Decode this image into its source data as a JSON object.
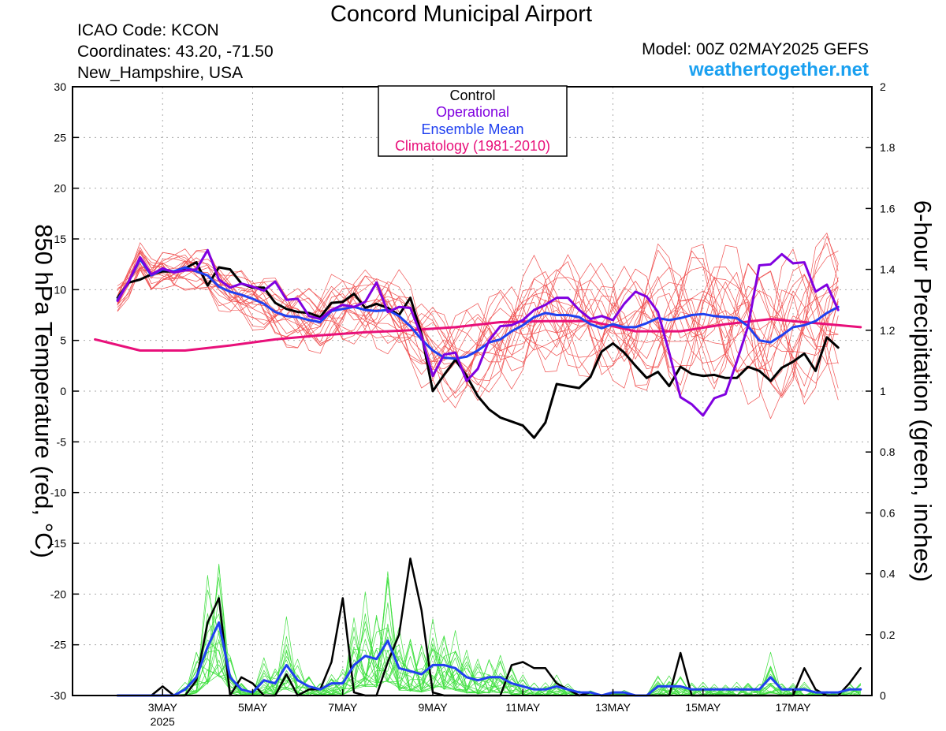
{
  "header": {
    "title": "Concord Municipal Airport",
    "icao": "ICAO Code: KCON",
    "coords": "Coordinates: 43.20, -71.50",
    "location": "New_Hampshire, USA",
    "model": "Model: 00Z 02MAY2025 GEFS",
    "site": "weathertogether.net"
  },
  "colors": {
    "control": "#000000",
    "operational": "#8000e0",
    "ensemble_mean": "#2040f0",
    "climatology": "#e8107a",
    "members_temp": "#f05050",
    "members_precip": "#40e040",
    "site": "#1aa0f0"
  },
  "chart_data": {
    "type": "line",
    "title": "Concord Municipal Airport",
    "ylabel": "850 hPa Temperature (red, °C)",
    "y2label": "6-hour Precipitation (green, inches)",
    "xlim": [
      1.0,
      18.75
    ],
    "ylim": [
      -30,
      30
    ],
    "y2lim": [
      0,
      2
    ],
    "yticks": [
      30,
      25,
      20,
      15,
      10,
      5,
      0,
      -5,
      -10,
      -15,
      -20,
      -25,
      -30
    ],
    "y2ticks": [
      2,
      1.8,
      1.6,
      1.4,
      1.2,
      1,
      0.8,
      0.6,
      0.4,
      0.2,
      0
    ],
    "xticks": [
      {
        "x": 3,
        "label": "3MAY",
        "sub": "2025"
      },
      {
        "x": 5,
        "label": "5MAY",
        "sub": ""
      },
      {
        "x": 7,
        "label": "7MAY",
        "sub": ""
      },
      {
        "x": 9,
        "label": "9MAY",
        "sub": ""
      },
      {
        "x": 11,
        "label": "11MAY",
        "sub": ""
      },
      {
        "x": 13,
        "label": "13MAY",
        "sub": ""
      },
      {
        "x": 15,
        "label": "15MAY",
        "sub": ""
      },
      {
        "x": 17,
        "label": "17MAY",
        "sub": ""
      }
    ],
    "legend": [
      "Control",
      "Operational",
      "Ensemble Mean",
      "Climatology (1981-2010)"
    ],
    "legend_placement": "top-center",
    "grid": true,
    "temperature": {
      "control": [
        [
          2.0,
          9.2
        ],
        [
          2.25,
          10.7
        ],
        [
          2.5,
          11.0
        ],
        [
          2.75,
          11.5
        ],
        [
          3.0,
          11.8
        ],
        [
          3.25,
          11.8
        ],
        [
          3.5,
          12.1
        ],
        [
          3.75,
          12.7
        ],
        [
          4.0,
          10.4
        ],
        [
          4.25,
          12.2
        ],
        [
          4.5,
          12.0
        ],
        [
          4.75,
          10.6
        ],
        [
          5.0,
          10.2
        ],
        [
          5.25,
          10.2
        ],
        [
          5.5,
          8.7
        ],
        [
          5.75,
          8.1
        ],
        [
          6.0,
          7.8
        ],
        [
          6.25,
          7.7
        ],
        [
          6.5,
          7.3
        ],
        [
          6.75,
          8.7
        ],
        [
          7.0,
          8.8
        ],
        [
          7.25,
          9.6
        ],
        [
          7.5,
          8.2
        ],
        [
          7.75,
          8.6
        ],
        [
          8.0,
          8.2
        ],
        [
          8.25,
          7.5
        ],
        [
          8.5,
          9.2
        ],
        [
          8.75,
          5.6
        ],
        [
          9.0,
          0.0
        ],
        [
          9.25,
          1.6
        ],
        [
          9.5,
          3.1
        ],
        [
          9.75,
          1.5
        ],
        [
          10.0,
          -0.5
        ],
        [
          10.25,
          -1.8
        ],
        [
          10.5,
          -2.6
        ],
        [
          10.75,
          -3.0
        ],
        [
          11.0,
          -3.4
        ],
        [
          11.25,
          -4.6
        ],
        [
          11.5,
          -3.1
        ],
        [
          11.75,
          0.7
        ],
        [
          12.0,
          0.5
        ],
        [
          12.25,
          0.3
        ],
        [
          12.5,
          1.4
        ],
        [
          12.75,
          3.9
        ],
        [
          13.0,
          4.7
        ],
        [
          13.25,
          3.8
        ],
        [
          13.5,
          2.5
        ],
        [
          13.75,
          1.3
        ],
        [
          14.0,
          1.9
        ],
        [
          14.25,
          0.5
        ],
        [
          14.5,
          2.4
        ],
        [
          14.75,
          1.7
        ],
        [
          15.0,
          1.5
        ],
        [
          15.25,
          1.6
        ],
        [
          15.5,
          1.3
        ],
        [
          15.75,
          1.3
        ],
        [
          16.0,
          2.4
        ],
        [
          16.25,
          2.0
        ],
        [
          16.5,
          1.0
        ],
        [
          16.75,
          2.3
        ],
        [
          17.0,
          2.9
        ],
        [
          17.25,
          3.7
        ],
        [
          17.5,
          2.0
        ],
        [
          17.75,
          5.3
        ],
        [
          18.0,
          4.3
        ]
      ],
      "operational": [
        [
          2.0,
          8.9
        ],
        [
          2.25,
          10.8
        ],
        [
          2.5,
          13.2
        ],
        [
          2.75,
          11.5
        ],
        [
          3.0,
          12.1
        ],
        [
          3.25,
          11.7
        ],
        [
          3.5,
          11.9
        ],
        [
          3.75,
          12.0
        ],
        [
          4.0,
          13.9
        ],
        [
          4.25,
          11.0
        ],
        [
          4.5,
          10.2
        ],
        [
          4.75,
          10.6
        ],
        [
          5.0,
          10.3
        ],
        [
          5.25,
          9.9
        ],
        [
          5.5,
          10.8
        ],
        [
          5.75,
          9.0
        ],
        [
          6.0,
          9.1
        ],
        [
          6.25,
          7.4
        ],
        [
          6.5,
          7.1
        ],
        [
          6.75,
          8.0
        ],
        [
          7.0,
          8.5
        ],
        [
          7.25,
          8.3
        ],
        [
          7.5,
          8.8
        ],
        [
          7.75,
          10.7
        ],
        [
          8.0,
          7.8
        ],
        [
          8.25,
          8.3
        ],
        [
          8.5,
          8.2
        ],
        [
          8.75,
          5.4
        ],
        [
          9.0,
          1.5
        ],
        [
          9.25,
          3.6
        ],
        [
          9.5,
          3.8
        ],
        [
          9.75,
          1.0
        ],
        [
          10.0,
          2.2
        ],
        [
          10.25,
          5.0
        ],
        [
          10.5,
          6.4
        ],
        [
          10.75,
          6.5
        ],
        [
          11.0,
          7.0
        ],
        [
          11.25,
          8.0
        ],
        [
          11.5,
          8.5
        ],
        [
          11.75,
          9.2
        ],
        [
          12.0,
          9.2
        ],
        [
          12.25,
          8.0
        ],
        [
          12.5,
          7.1
        ],
        [
          12.75,
          7.4
        ],
        [
          13.0,
          7.0
        ],
        [
          13.25,
          8.6
        ],
        [
          13.5,
          9.8
        ],
        [
          13.75,
          9.3
        ],
        [
          14.0,
          7.8
        ],
        [
          14.25,
          3.8
        ],
        [
          14.5,
          -0.6
        ],
        [
          14.75,
          -1.3
        ],
        [
          15.0,
          -2.4
        ],
        [
          15.25,
          -0.7
        ],
        [
          15.5,
          -0.3
        ],
        [
          15.75,
          2.9
        ],
        [
          16.0,
          6.4
        ],
        [
          16.25,
          12.4
        ],
        [
          16.5,
          12.5
        ],
        [
          16.75,
          13.5
        ],
        [
          17.0,
          12.6
        ],
        [
          17.25,
          12.7
        ],
        [
          17.5,
          9.8
        ],
        [
          17.75,
          10.5
        ],
        [
          18.0,
          8.0
        ]
      ],
      "ensemble_mean": [
        [
          2.0,
          9.0
        ],
        [
          2.25,
          10.8
        ],
        [
          2.5,
          13.0
        ],
        [
          2.75,
          11.4
        ],
        [
          3.0,
          12.0
        ],
        [
          3.25,
          11.8
        ],
        [
          3.5,
          12.2
        ],
        [
          3.75,
          11.8
        ],
        [
          4.0,
          11.4
        ],
        [
          4.25,
          10.3
        ],
        [
          4.5,
          9.8
        ],
        [
          4.75,
          9.5
        ],
        [
          5.0,
          9.1
        ],
        [
          5.25,
          8.6
        ],
        [
          5.5,
          7.8
        ],
        [
          5.75,
          7.4
        ],
        [
          6.0,
          7.3
        ],
        [
          6.25,
          7.0
        ],
        [
          6.5,
          6.8
        ],
        [
          6.75,
          7.9
        ],
        [
          7.0,
          8.1
        ],
        [
          7.25,
          8.3
        ],
        [
          7.5,
          8.0
        ],
        [
          7.75,
          7.9
        ],
        [
          8.0,
          8.0
        ],
        [
          8.25,
          7.4
        ],
        [
          8.5,
          6.4
        ],
        [
          8.75,
          5.1
        ],
        [
          9.0,
          4.0
        ],
        [
          9.25,
          3.3
        ],
        [
          9.5,
          3.2
        ],
        [
          9.75,
          3.4
        ],
        [
          10.0,
          4.0
        ],
        [
          10.25,
          4.8
        ],
        [
          10.5,
          5.1
        ],
        [
          10.75,
          5.9
        ],
        [
          11.0,
          6.5
        ],
        [
          11.25,
          7.3
        ],
        [
          11.5,
          7.7
        ],
        [
          11.75,
          7.5
        ],
        [
          12.0,
          7.5
        ],
        [
          12.25,
          7.3
        ],
        [
          12.5,
          6.6
        ],
        [
          12.75,
          6.2
        ],
        [
          13.0,
          6.6
        ],
        [
          13.25,
          6.3
        ],
        [
          13.5,
          6.3
        ],
        [
          13.75,
          6.7
        ],
        [
          14.0,
          7.2
        ],
        [
          14.25,
          7.0
        ],
        [
          14.5,
          7.2
        ],
        [
          14.75,
          7.5
        ],
        [
          15.0,
          7.6
        ],
        [
          15.25,
          7.4
        ],
        [
          15.5,
          7.3
        ],
        [
          15.75,
          7.2
        ],
        [
          16.0,
          6.4
        ],
        [
          16.25,
          5.0
        ],
        [
          16.5,
          4.8
        ],
        [
          16.75,
          5.5
        ],
        [
          17.0,
          6.3
        ],
        [
          17.25,
          6.5
        ],
        [
          17.5,
          6.9
        ],
        [
          17.75,
          7.7
        ],
        [
          18.0,
          8.3
        ]
      ],
      "climatology": [
        [
          1.5,
          5.1
        ],
        [
          2.5,
          4.0
        ],
        [
          3.5,
          4.0
        ],
        [
          4.5,
          4.5
        ],
        [
          5.5,
          5.1
        ],
        [
          6.5,
          5.5
        ],
        [
          7.5,
          5.8
        ],
        [
          8.5,
          6.0
        ],
        [
          9.5,
          6.3
        ],
        [
          10.5,
          6.8
        ],
        [
          11.5,
          6.9
        ],
        [
          12.5,
          6.9
        ],
        [
          13.5,
          5.9
        ],
        [
          14.5,
          5.9
        ],
        [
          15.5,
          6.6
        ],
        [
          16.5,
          7.1
        ],
        [
          17.5,
          6.7
        ],
        [
          18.5,
          6.3
        ]
      ]
    },
    "precipitation": {
      "control": [
        [
          2.0,
          0.0
        ],
        [
          2.5,
          0.0
        ],
        [
          2.75,
          0.0
        ],
        [
          3.0,
          0.03
        ],
        [
          3.25,
          0.0
        ],
        [
          3.5,
          0.0
        ],
        [
          3.75,
          0.05
        ],
        [
          4.0,
          0.24
        ],
        [
          4.25,
          0.32
        ],
        [
          4.5,
          0.0
        ],
        [
          4.75,
          0.06
        ],
        [
          5.0,
          0.04
        ],
        [
          5.25,
          0.0
        ],
        [
          5.5,
          0.0
        ],
        [
          5.75,
          0.07
        ],
        [
          6.0,
          0.0
        ],
        [
          6.25,
          0.02
        ],
        [
          6.5,
          0.02
        ],
        [
          6.75,
          0.11
        ],
        [
          7.0,
          0.32
        ],
        [
          7.25,
          0.01
        ],
        [
          7.5,
          0.0
        ],
        [
          7.75,
          0.0
        ],
        [
          8.0,
          0.11
        ],
        [
          8.25,
          0.2
        ],
        [
          8.5,
          0.45
        ],
        [
          8.75,
          0.28
        ],
        [
          9.0,
          0.01
        ],
        [
          9.25,
          0.0
        ],
        [
          9.5,
          0.0
        ],
        [
          9.75,
          0.0
        ],
        [
          10.0,
          0.0
        ],
        [
          10.25,
          0.0
        ],
        [
          10.5,
          0.0
        ],
        [
          10.75,
          0.1
        ],
        [
          11.0,
          0.11
        ],
        [
          11.25,
          0.09
        ],
        [
          11.5,
          0.09
        ],
        [
          11.75,
          0.04
        ],
        [
          12.0,
          0.02
        ],
        [
          12.25,
          0.0
        ],
        [
          12.5,
          0.01
        ],
        [
          12.75,
          0.0
        ],
        [
          13.0,
          0.0
        ],
        [
          13.25,
          0.0
        ],
        [
          13.5,
          0.0
        ],
        [
          13.75,
          0.0
        ],
        [
          14.0,
          0.0
        ],
        [
          14.25,
          0.0
        ],
        [
          14.5,
          0.14
        ],
        [
          14.75,
          0.0
        ],
        [
          15.0,
          0.0
        ],
        [
          15.25,
          0.0
        ],
        [
          15.5,
          0.0
        ],
        [
          15.75,
          0.0
        ],
        [
          16.0,
          0.0
        ],
        [
          16.25,
          0.0
        ],
        [
          16.5,
          0.0
        ],
        [
          16.75,
          0.0
        ],
        [
          17.0,
          0.0
        ],
        [
          17.25,
          0.09
        ],
        [
          17.5,
          0.02
        ],
        [
          17.75,
          0.0
        ],
        [
          18.0,
          0.0
        ],
        [
          18.25,
          0.04
        ],
        [
          18.5,
          0.09
        ]
      ],
      "ensemble_mean": [
        [
          2.0,
          0.0
        ],
        [
          2.5,
          0.0
        ],
        [
          2.75,
          0.0
        ],
        [
          3.0,
          0.0
        ],
        [
          3.25,
          0.0
        ],
        [
          3.5,
          0.02
        ],
        [
          3.75,
          0.06
        ],
        [
          4.0,
          0.16
        ],
        [
          4.25,
          0.24
        ],
        [
          4.5,
          0.06
        ],
        [
          4.75,
          0.02
        ],
        [
          5.0,
          0.01
        ],
        [
          5.25,
          0.05
        ],
        [
          5.5,
          0.04
        ],
        [
          5.75,
          0.1
        ],
        [
          6.0,
          0.05
        ],
        [
          6.25,
          0.03
        ],
        [
          6.5,
          0.02
        ],
        [
          6.75,
          0.04
        ],
        [
          7.0,
          0.04
        ],
        [
          7.25,
          0.1
        ],
        [
          7.5,
          0.13
        ],
        [
          7.75,
          0.12
        ],
        [
          8.0,
          0.18
        ],
        [
          8.25,
          0.09
        ],
        [
          8.5,
          0.08
        ],
        [
          8.75,
          0.07
        ],
        [
          9.0,
          0.1
        ],
        [
          9.25,
          0.1
        ],
        [
          9.5,
          0.09
        ],
        [
          9.75,
          0.06
        ],
        [
          10.0,
          0.05
        ],
        [
          10.25,
          0.06
        ],
        [
          10.5,
          0.06
        ],
        [
          10.75,
          0.04
        ],
        [
          11.0,
          0.03
        ],
        [
          11.25,
          0.02
        ],
        [
          11.5,
          0.02
        ],
        [
          11.75,
          0.03
        ],
        [
          12.0,
          0.02
        ],
        [
          12.25,
          0.01
        ],
        [
          12.5,
          0.01
        ],
        [
          12.75,
          0.0
        ],
        [
          13.0,
          0.01
        ],
        [
          13.25,
          0.01
        ],
        [
          13.5,
          0.0
        ],
        [
          13.75,
          0.0
        ],
        [
          14.0,
          0.03
        ],
        [
          14.25,
          0.03
        ],
        [
          14.5,
          0.03
        ],
        [
          14.75,
          0.02
        ],
        [
          15.0,
          0.02
        ],
        [
          15.25,
          0.02
        ],
        [
          15.5,
          0.02
        ],
        [
          15.75,
          0.02
        ],
        [
          16.0,
          0.02
        ],
        [
          16.25,
          0.02
        ],
        [
          16.5,
          0.06
        ],
        [
          16.75,
          0.02
        ],
        [
          17.0,
          0.02
        ],
        [
          17.25,
          0.02
        ],
        [
          17.5,
          0.01
        ],
        [
          17.75,
          0.01
        ],
        [
          18.0,
          0.01
        ],
        [
          18.25,
          0.02
        ],
        [
          18.5,
          0.02
        ]
      ]
    },
    "members_note": "20 GEFS ensemble members drawn as thin red (temperature) and green (precipitation) lines"
  }
}
